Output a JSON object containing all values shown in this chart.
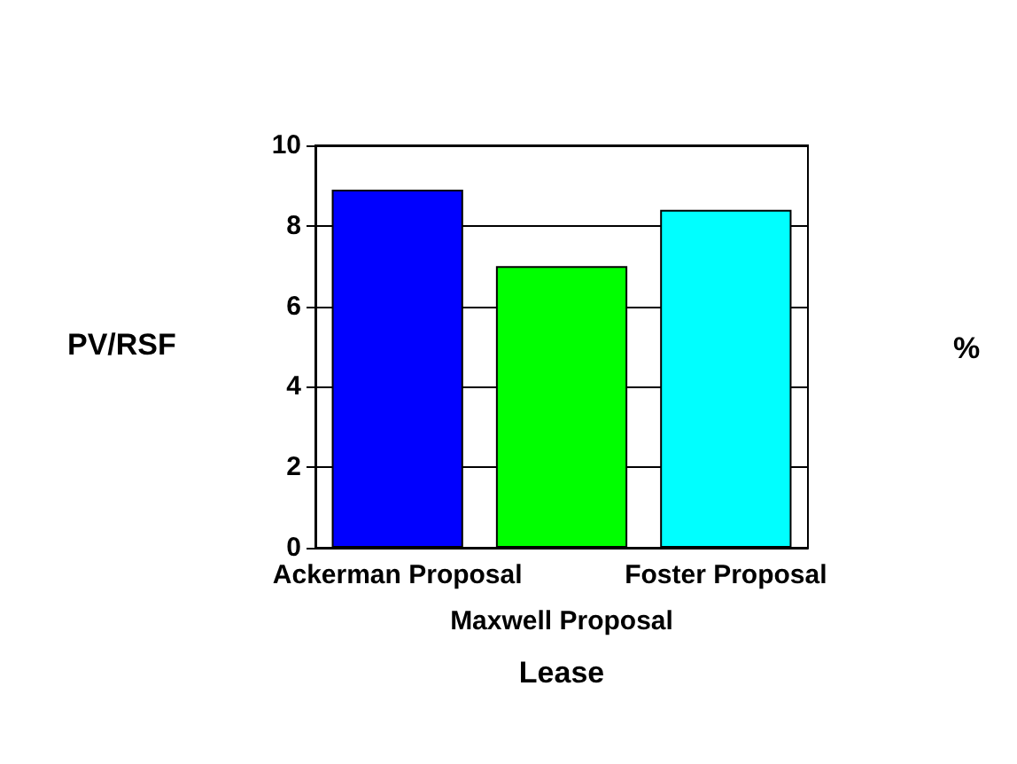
{
  "chart_data": {
    "type": "bar",
    "categories": [
      "Ackerman Proposal",
      "Maxwell Proposal",
      "Foster Proposal"
    ],
    "values": [
      8.9,
      7.0,
      8.4
    ],
    "colors": [
      "#0000ff",
      "#00ff00",
      "#00ffff"
    ],
    "xlabel": "Lease",
    "ylabel": "PV/RSF",
    "y2label": "%",
    "ylim": [
      0,
      10
    ],
    "yticks": [
      0,
      2,
      4,
      6,
      8,
      10
    ],
    "grid": "y"
  }
}
